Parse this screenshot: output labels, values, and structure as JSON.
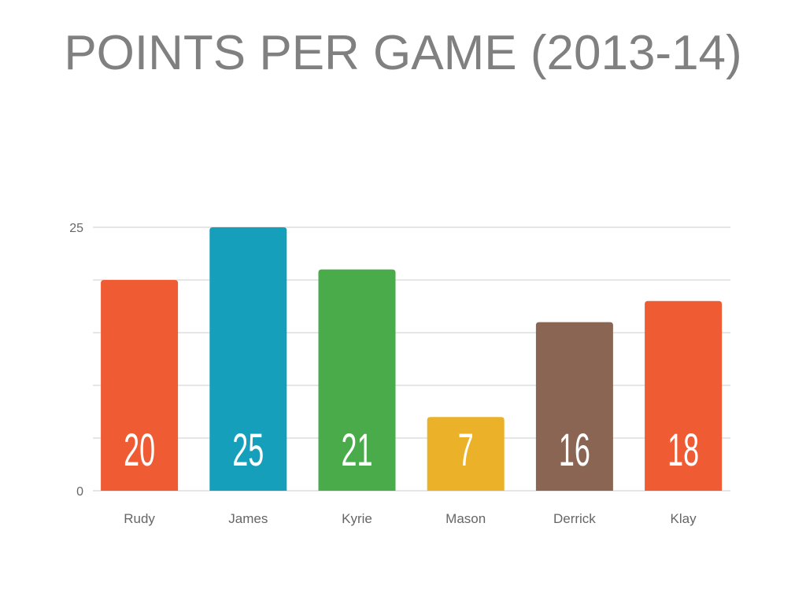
{
  "title": "POINTS PER GAME (2013-14)",
  "chart_data": {
    "type": "bar",
    "title": "POINTS PER GAME (2013-14)",
    "xlabel": "",
    "ylabel": "",
    "categories": [
      "Rudy",
      "James",
      "Kyrie",
      "Mason",
      "Derrick",
      "Klay"
    ],
    "values": [
      20,
      25,
      21,
      7,
      16,
      18
    ],
    "data_labels": [
      "20",
      "25",
      "21",
      "7",
      "16",
      "18"
    ],
    "colors": [
      "#ef5b33",
      "#169fbb",
      "#49ab4a",
      "#ebb229",
      "#8b6553",
      "#ef5b33"
    ],
    "ylim": [
      0,
      25
    ],
    "yticks": [
      0,
      25
    ],
    "ytick_labels": [
      "0",
      "25"
    ],
    "gridlines": [
      0,
      5,
      10,
      15,
      20,
      25
    ],
    "grid": true,
    "legend": "none",
    "colors_meta": {
      "gridline": "#dddddd",
      "axis_text": "#666666",
      "label_inside": "#ffffff",
      "label_outside": "#222222"
    }
  }
}
